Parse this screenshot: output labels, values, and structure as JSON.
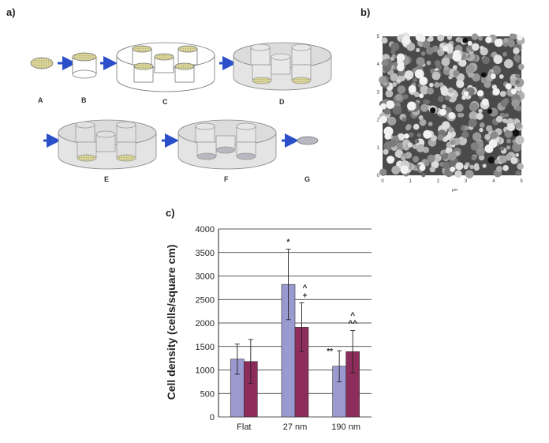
{
  "panels": {
    "a": "a)",
    "b": "b)",
    "c": "c)"
  },
  "schematic": {
    "steps": [
      "A",
      "B",
      "C",
      "D",
      "E",
      "F",
      "G"
    ],
    "colors": {
      "arrow": "#2a4fc8",
      "well_fill": "#dcdcdc",
      "disc": "#d9d49a",
      "disc_grey": "#b8b8c0"
    }
  },
  "afm": {
    "x_ticks": [
      "0",
      "1",
      "2",
      "3",
      "4",
      "5"
    ],
    "y_ticks": [
      "0",
      "1",
      "2",
      "3",
      "4",
      "5"
    ],
    "x_unit": "µm"
  },
  "chart_data": {
    "type": "bar",
    "categories": [
      "Flat",
      "27 nm",
      "190 nm"
    ],
    "ylabel": "Cell density (cells/square cm)",
    "ylim": [
      0,
      4000
    ],
    "y_ticks": [
      "0",
      "500",
      "1000",
      "1500",
      "2000",
      "2500",
      "3000",
      "3500",
      "4000"
    ],
    "grid": true,
    "series": [
      {
        "values": [
          1230,
          2820,
          1080
        ],
        "errors": [
          320,
          750,
          330
        ],
        "color": "#9a9ad0"
      },
      {
        "values": [
          1180,
          1910,
          1390
        ],
        "errors": [
          470,
          520,
          450
        ],
        "color": "#8e2c5c"
      }
    ],
    "annotations": [
      {
        "category": 1,
        "series": 0,
        "text": "*"
      },
      {
        "category": 1,
        "series": 1,
        "text": "+"
      },
      {
        "category": 1,
        "series": 1,
        "text": "^"
      },
      {
        "category": 2,
        "series": 0,
        "text": "**"
      },
      {
        "category": 2,
        "series": 1,
        "text": "^^"
      },
      {
        "category": 2,
        "series": 1,
        "text": "^"
      }
    ]
  }
}
